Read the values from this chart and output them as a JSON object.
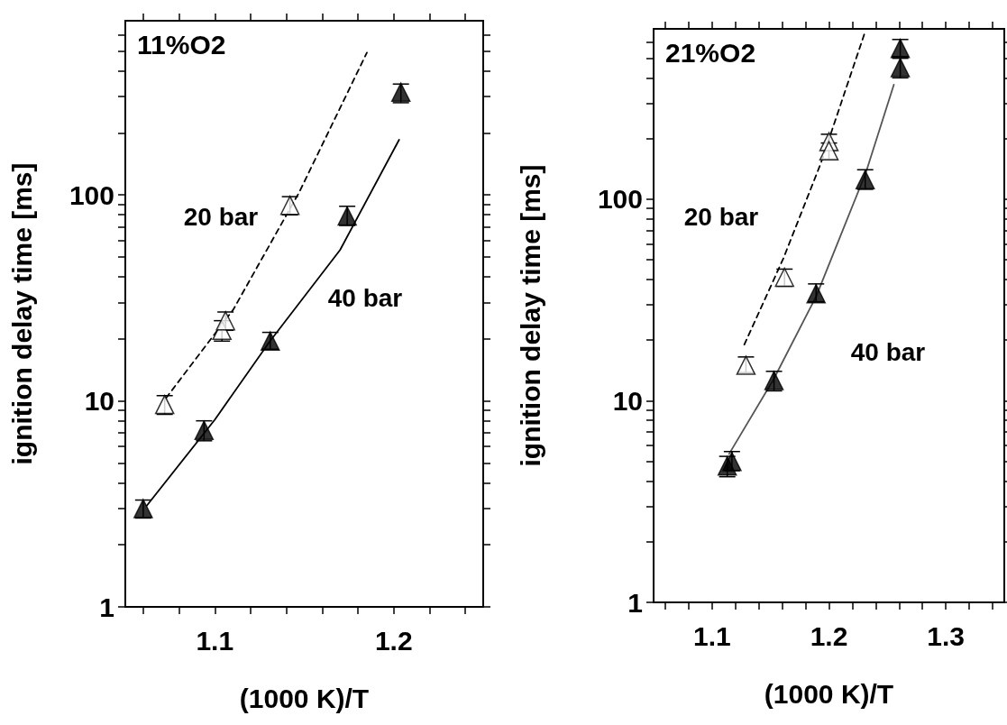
{
  "chart_data": [
    {
      "type": "scatter",
      "title": "11%O2",
      "xlabel": "(1000 K)/T",
      "ylabel": "ignition delay time [ms]",
      "log": "y",
      "marker": "triangle",
      "xlim": [
        1.05,
        1.25
      ],
      "xticks": [
        {
          "value": 1.06,
          "label": null
        },
        {
          "value": 1.08,
          "label": null
        },
        1.1,
        {
          "value": 1.12,
          "label": null
        },
        {
          "value": 1.14,
          "label": null
        },
        {
          "value": 1.16,
          "label": null
        },
        {
          "value": 1.18,
          "label": null
        },
        1.2,
        {
          "value": 1.22,
          "label": null
        },
        {
          "value": 1.24,
          "label": null
        }
      ],
      "ylim": [
        1,
        700
      ],
      "yticks": [
        1,
        {
          "value": 2,
          "label": null
        },
        {
          "value": 3,
          "label": null
        },
        {
          "value": 4,
          "label": null
        },
        {
          "value": 5,
          "label": null
        },
        {
          "value": 6,
          "label": null
        },
        {
          "value": 7,
          "label": null
        },
        {
          "value": 8,
          "label": null
        },
        {
          "value": 9,
          "label": null
        },
        10,
        {
          "value": 20,
          "label": null
        },
        {
          "value": 30,
          "label": null
        },
        {
          "value": 40,
          "label": null
        },
        {
          "value": 50,
          "label": null
        },
        {
          "value": 60,
          "label": null
        },
        {
          "value": 70,
          "label": null
        },
        {
          "value": 80,
          "label": null
        },
        {
          "value": 90,
          "label": null
        },
        100,
        {
          "value": 200,
          "label": null
        },
        {
          "value": 300,
          "label": null
        },
        {
          "value": 400,
          "label": null
        },
        {
          "value": 500,
          "label": null
        },
        {
          "value": 600,
          "label": null
        }
      ],
      "annotations": [
        "20 bar",
        "40 bar"
      ],
      "series": [
        {
          "type": "scatter",
          "color": "#ffffff",
          "x": [
            1.072,
            1.104,
            1.106,
            1.142
          ],
          "values": [
            9.6,
            22,
            24.5,
            89
          ],
          "errors": [
            [
              8.6,
              10.6
            ],
            [
              19.5,
              24.5
            ],
            [
              22,
              27
            ],
            [
              80,
              98
            ]
          ]
        },
        {
          "type": "scatter",
          "color": "#000000",
          "x": [
            1.06,
            1.094,
            1.131,
            1.174,
            1.204
          ],
          "values": [
            3.0,
            7.2,
            19.5,
            79,
            315
          ],
          "errors": [
            [
              2.7,
              3.3
            ],
            [
              6.4,
              8.0
            ],
            [
              17.8,
              21.5
            ],
            [
              71,
              88
            ],
            [
              280,
              345
            ]
          ]
        },
        {
          "type": "line",
          "line_style": "dashed",
          "marker": "none",
          "color": "#000000",
          "x": [
            1.0727,
            1.1104,
            1.1472,
            1.185
          ],
          "values": [
            10.3,
            27.8,
            103,
            490
          ]
        },
        {
          "type": "line",
          "line_style": "solid",
          "marker": "none",
          "color": "#000000",
          "x": [
            1.062,
            1.1,
            1.1305,
            1.17,
            1.203
          ],
          "values": [
            3.1,
            8.1,
            19.3,
            54,
            185
          ]
        }
      ]
    },
    {
      "type": "scatter",
      "title": "21%O2",
      "xlabel": "(1000 K)/T",
      "ylabel": "ignition delay time [ms]",
      "log": "y",
      "marker": "triangle",
      "xlim": [
        1.05,
        1.35
      ],
      "xticks": [
        {
          "value": 1.06,
          "label": null
        },
        {
          "value": 1.08,
          "label": null
        },
        1.1,
        {
          "value": 1.12,
          "label": null
        },
        {
          "value": 1.14,
          "label": null
        },
        {
          "value": 1.16,
          "label": null
        },
        {
          "value": 1.18,
          "label": null
        },
        1.2,
        {
          "value": 1.22,
          "label": null
        },
        {
          "value": 1.24,
          "label": null
        },
        {
          "value": 1.26,
          "label": null
        },
        {
          "value": 1.28,
          "label": null
        },
        1.3,
        {
          "value": 1.32,
          "label": null
        },
        {
          "value": 1.34,
          "label": null
        }
      ],
      "ylim": [
        1,
        700
      ],
      "yticks": [
        1,
        {
          "value": 2,
          "label": null
        },
        {
          "value": 3,
          "label": null
        },
        {
          "value": 4,
          "label": null
        },
        {
          "value": 5,
          "label": null
        },
        {
          "value": 6,
          "label": null
        },
        {
          "value": 7,
          "label": null
        },
        {
          "value": 8,
          "label": null
        },
        {
          "value": 9,
          "label": null
        },
        10,
        {
          "value": 20,
          "label": null
        },
        {
          "value": 30,
          "label": null
        },
        {
          "value": 40,
          "label": null
        },
        {
          "value": 50,
          "label": null
        },
        {
          "value": 60,
          "label": null
        },
        {
          "value": 70,
          "label": null
        },
        {
          "value": 80,
          "label": null
        },
        {
          "value": 90,
          "label": null
        },
        100,
        {
          "value": 200,
          "label": null
        },
        {
          "value": 300,
          "label": null
        },
        {
          "value": 400,
          "label": null
        },
        {
          "value": 500,
          "label": null
        },
        {
          "value": 600,
          "label": null
        }
      ],
      "annotations": [
        "20 bar",
        "40 bar"
      ],
      "series": [
        {
          "type": "scatter",
          "color": "#ffffff",
          "x": [
            1.129,
            1.162,
            1.2,
            1.2
          ],
          "values": [
            15,
            41,
            193,
            174
          ],
          "errors": [
            [
              13.8,
              16.5
            ],
            [
              37,
              45
            ],
            [
              175,
              210
            ],
            [
              158,
              190
            ]
          ]
        },
        {
          "type": "scatter",
          "color": "#000000",
          "x": [
            1.113,
            1.117,
            1.153,
            1.189,
            1.231,
            1.261,
            1.261
          ],
          "values": [
            4.75,
            5.0,
            12.6,
            34,
            125,
            560,
            450
          ],
          "errors": [
            [
              4.2,
              5.3
            ],
            [
              4.5,
              5.6
            ],
            [
              11.2,
              14
            ],
            [
              31,
              38
            ],
            [
              112,
              140
            ],
            [
              510,
              620
            ],
            [
              400,
              500
            ]
          ]
        },
        {
          "type": "line",
          "line_style": "dashed",
          "marker": "none",
          "color": "#000000",
          "x": [
            1.1276,
            1.1611,
            1.1931,
            1.2303
          ],
          "values": [
            19,
            51,
            151,
            660
          ]
        },
        {
          "type": "line",
          "line_style": "solid",
          "marker": "none",
          "color": "#555555",
          "x": [
            1.1146,
            1.1527,
            1.1891,
            1.2315,
            1.2555
          ],
          "values": [
            5.45,
            12.8,
            33,
            135,
            370
          ]
        }
      ]
    }
  ]
}
